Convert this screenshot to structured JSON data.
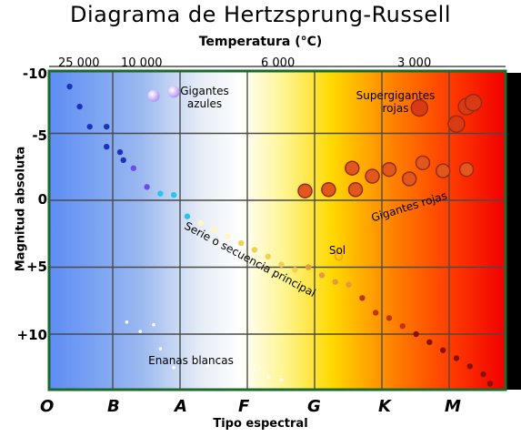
{
  "title": "Diagrama de Hertzsprung-Russell",
  "top_axis": {
    "label": "Temperatura (°C)",
    "ticks": [
      "25 000",
      "10 000",
      "6 000",
      "3 000"
    ]
  },
  "y_axis": {
    "label": "Magnitud absoluta",
    "ticks": [
      "-10",
      "-5",
      "0",
      "+5",
      "+10"
    ]
  },
  "x_axis": {
    "label": "Tipo espectral",
    "ticks": [
      "O",
      "B",
      "A",
      "F",
      "G",
      "K",
      "M"
    ]
  },
  "annotations": {
    "blue_giants": "Gigantes azules",
    "supergiants": "Supergigantes rojas",
    "red_giants": "Gigantes rojas",
    "main_sequence": "Serie o secuencia principal",
    "sun": "Sol",
    "white_dwarfs": "Enanas blancas"
  },
  "chart_data": {
    "type": "scatter",
    "title": "Diagrama de Hertzsprung-Russell",
    "xlabel": "Tipo espectral",
    "ylabel": "Magnitud absoluta",
    "x_categories": [
      "O",
      "B",
      "A",
      "F",
      "G",
      "K",
      "M"
    ],
    "secondary_x_label": "Temperatura (°C)",
    "secondary_x_ticks": [
      "25 000",
      "10 000",
      "6 000",
      "3 000"
    ],
    "y_ticks": [
      -10,
      -5,
      0,
      5,
      10
    ],
    "ylim": [
      -10,
      14
    ],
    "y_inverted": true,
    "background": "spectral gradient blue (O) to white (A-F) to yellow (G) to red (M)",
    "groups": [
      {
        "name": "Gigantes azules",
        "color": "#b69cf0",
        "points": [
          [
            1.5,
            -7.8
          ],
          [
            1.8,
            -8.1
          ]
        ]
      },
      {
        "name": "Supergigantes rojas",
        "color": "#d83a14",
        "points": [
          [
            5.45,
            -6.9
          ],
          [
            6.15,
            -7.0
          ],
          [
            6.25,
            -7.3
          ],
          [
            6.0,
            -5.7
          ]
        ]
      },
      {
        "name": "Gigantes rojas",
        "color": "#e0581c",
        "points": [
          [
            3.75,
            -0.7
          ],
          [
            4.1,
            -0.8
          ],
          [
            4.5,
            -0.8
          ],
          [
            4.45,
            -2.4
          ],
          [
            4.75,
            -1.8
          ],
          [
            5.0,
            -2.3
          ],
          [
            5.3,
            -1.6
          ],
          [
            5.5,
            -2.8
          ],
          [
            5.8,
            -2.2
          ],
          [
            6.15,
            -2.3
          ]
        ]
      },
      {
        "name": "Serie o secuencia principal",
        "color": "#caa030",
        "points": [
          [
            0.25,
            -8.5
          ],
          [
            0.4,
            -7.0
          ],
          [
            0.55,
            -5.5
          ],
          [
            0.8,
            -5.5
          ],
          [
            0.8,
            -4.0
          ],
          [
            1.0,
            -3.6
          ],
          [
            1.05,
            -3.0
          ],
          [
            1.2,
            -2.4
          ],
          [
            1.4,
            -1.0
          ],
          [
            1.6,
            -0.5
          ],
          [
            1.8,
            -0.4
          ],
          [
            2.0,
            1.2
          ],
          [
            2.2,
            1.7
          ],
          [
            2.4,
            2.2
          ],
          [
            2.6,
            2.7
          ],
          [
            2.8,
            3.2
          ],
          [
            3.0,
            3.7
          ],
          [
            3.2,
            4.2
          ],
          [
            3.4,
            4.8
          ],
          [
            3.6,
            5.2
          ],
          [
            3.8,
            5.0
          ],
          [
            4.0,
            5.6
          ],
          [
            4.2,
            6.1
          ],
          [
            4.4,
            6.3
          ],
          [
            4.6,
            7.3
          ],
          [
            4.8,
            8.4
          ],
          [
            5.0,
            8.8
          ],
          [
            5.2,
            9.4
          ],
          [
            5.4,
            10.0
          ],
          [
            5.6,
            10.6
          ],
          [
            5.8,
            11.2
          ],
          [
            6.0,
            11.8
          ],
          [
            6.2,
            12.4
          ],
          [
            6.4,
            13.0
          ],
          [
            6.5,
            13.7
          ]
        ]
      },
      {
        "name": "Sol",
        "color": "#f2a020",
        "points": [
          [
            4.25,
            4.2
          ]
        ]
      },
      {
        "name": "Enanas blancas",
        "color": "#ffffff",
        "points": [
          [
            1.1,
            9.1
          ],
          [
            1.3,
            9.8
          ],
          [
            1.5,
            9.3
          ],
          [
            1.6,
            11.1
          ],
          [
            1.8,
            12.5
          ],
          [
            2.1,
            12.0
          ],
          [
            2.3,
            12.3
          ],
          [
            2.6,
            12.5
          ],
          [
            3.0,
            12.7
          ],
          [
            3.2,
            13.2
          ],
          [
            3.4,
            13.4
          ]
        ]
      }
    ]
  }
}
